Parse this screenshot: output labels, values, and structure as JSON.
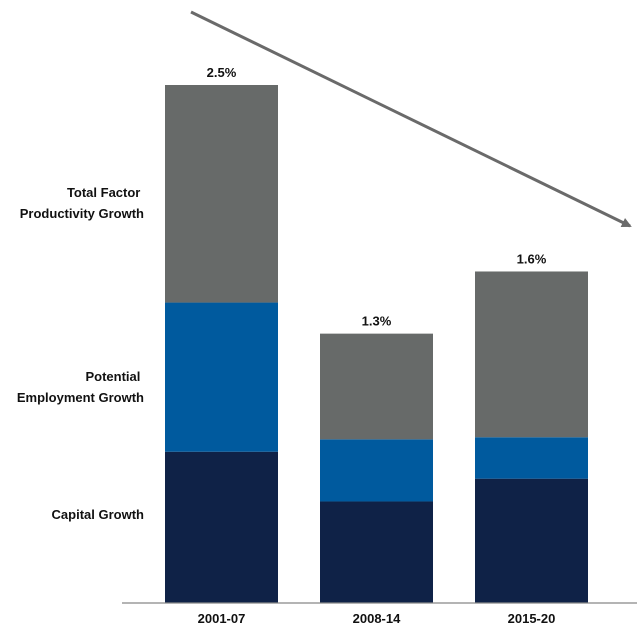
{
  "chart_data": {
    "type": "bar",
    "stacked": true,
    "categories": [
      "2001-07",
      "2008-14",
      "2015-20"
    ],
    "series": [
      {
        "name": "Capital Growth",
        "values": [
          0.73,
          0.49,
          0.6
        ],
        "color": "#0f2247"
      },
      {
        "name": "Potential Employment Growth",
        "values": [
          0.72,
          0.3,
          0.2
        ],
        "color": "#005a9e"
      },
      {
        "name": "Total Factor Productivity Growth",
        "values": [
          1.05,
          0.51,
          0.8
        ],
        "color": "#676a69"
      }
    ],
    "totals": [
      "2.5%",
      "1.3%",
      "1.6%"
    ],
    "ylim": [
      0,
      2.5
    ],
    "grid": false,
    "legend": "left",
    "trend_arrow": "downward",
    "arrow_color": "#6a6a6a",
    "axis_color": "#888888"
  }
}
